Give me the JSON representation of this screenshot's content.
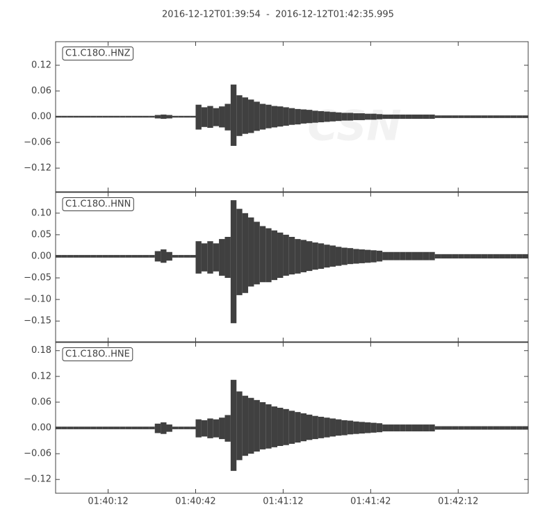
{
  "chart_data": {
    "type": "seismogram",
    "title": "2016-12-12T01:39:54  -  2016-12-12T01:42:35.995",
    "watermark": "CSN",
    "color": "#404040",
    "xlim": [
      0,
      161.995
    ],
    "xticks": [
      {
        "value": 18,
        "label": "01:40:12"
      },
      {
        "value": 48,
        "label": "01:40:42"
      },
      {
        "value": 78,
        "label": "01:41:12"
      },
      {
        "value": 108,
        "label": "01:41:42"
      },
      {
        "value": 138,
        "label": "01:42:12"
      }
    ],
    "x": [
      0,
      2,
      4,
      6,
      8,
      10,
      12,
      14,
      16,
      18,
      20,
      22,
      24,
      26,
      28,
      30,
      32,
      34,
      36,
      38,
      40,
      42,
      44,
      46,
      48,
      50,
      52,
      54,
      56,
      58,
      60,
      62,
      64,
      66,
      68,
      70,
      72,
      74,
      76,
      78,
      80,
      82,
      84,
      86,
      88,
      90,
      92,
      94,
      96,
      98,
      100,
      102,
      104,
      106,
      108,
      110,
      112,
      114,
      116,
      118,
      120,
      122,
      124,
      126,
      128,
      130,
      132,
      134,
      136,
      138,
      140,
      142,
      144,
      146,
      148,
      150,
      152,
      154,
      156,
      158,
      160
    ],
    "panels": [
      {
        "name": "C1.C18O..HNZ",
        "ylim": [
          -0.175,
          0.175
        ],
        "yticks": [
          {
            "value": -0.12,
            "label": "−0.12"
          },
          {
            "value": -0.06,
            "label": "−0.06"
          },
          {
            "value": 0,
            "label": "0.00"
          },
          {
            "value": 0.06,
            "label": "0.06"
          },
          {
            "value": 0.12,
            "label": "0.12"
          }
        ],
        "max": [
          0.002,
          0.002,
          0.002,
          0.002,
          0.002,
          0.002,
          0.002,
          0.002,
          0.002,
          0.002,
          0.002,
          0.002,
          0.002,
          0.002,
          0.002,
          0.002,
          0.002,
          0.004,
          0.005,
          0.004,
          0.002,
          0.002,
          0.002,
          0.002,
          0.028,
          0.022,
          0.025,
          0.02,
          0.024,
          0.03,
          0.075,
          0.05,
          0.045,
          0.04,
          0.035,
          0.03,
          0.028,
          0.025,
          0.024,
          0.022,
          0.02,
          0.018,
          0.017,
          0.016,
          0.014,
          0.013,
          0.012,
          0.011,
          0.01,
          0.009,
          0.009,
          0.008,
          0.008,
          0.007,
          0.007,
          0.006,
          0.005,
          0.005,
          0.005,
          0.005,
          0.005,
          0.005,
          0.005,
          0.005,
          0.005,
          0.003,
          0.003,
          0.003,
          0.003,
          0.003,
          0.003,
          0.003,
          0.003,
          0.003,
          0.003,
          0.003,
          0.003,
          0.003,
          0.003,
          0.003,
          0.003
        ],
        "min": [
          -0.002,
          -0.002,
          -0.002,
          -0.002,
          -0.002,
          -0.002,
          -0.002,
          -0.002,
          -0.002,
          -0.002,
          -0.002,
          -0.002,
          -0.002,
          -0.002,
          -0.002,
          -0.002,
          -0.002,
          -0.004,
          -0.005,
          -0.004,
          -0.002,
          -0.002,
          -0.002,
          -0.002,
          -0.03,
          -0.024,
          -0.026,
          -0.022,
          -0.025,
          -0.032,
          -0.068,
          -0.045,
          -0.04,
          -0.038,
          -0.033,
          -0.03,
          -0.027,
          -0.025,
          -0.023,
          -0.021,
          -0.019,
          -0.018,
          -0.016,
          -0.015,
          -0.014,
          -0.013,
          -0.012,
          -0.011,
          -0.01,
          -0.009,
          -0.009,
          -0.008,
          -0.008,
          -0.007,
          -0.007,
          -0.006,
          -0.005,
          -0.005,
          -0.005,
          -0.005,
          -0.005,
          -0.005,
          -0.005,
          -0.005,
          -0.005,
          -0.003,
          -0.003,
          -0.003,
          -0.003,
          -0.003,
          -0.003,
          -0.003,
          -0.003,
          -0.003,
          -0.003,
          -0.003,
          -0.003,
          -0.003,
          -0.003,
          -0.003,
          -0.003
        ]
      },
      {
        "name": "C1.C18O..HNN",
        "ylim": [
          -0.198,
          0.148
        ],
        "yticks": [
          {
            "value": -0.15,
            "label": "−0.15"
          },
          {
            "value": -0.1,
            "label": "−0.10"
          },
          {
            "value": -0.05,
            "label": "−0.05"
          },
          {
            "value": 0,
            "label": "0.00"
          },
          {
            "value": 0.05,
            "label": "0.05"
          },
          {
            "value": 0.1,
            "label": "0.10"
          }
        ],
        "max": [
          0.003,
          0.003,
          0.003,
          0.003,
          0.003,
          0.003,
          0.003,
          0.003,
          0.003,
          0.003,
          0.003,
          0.003,
          0.003,
          0.003,
          0.003,
          0.003,
          0.003,
          0.012,
          0.016,
          0.01,
          0.003,
          0.003,
          0.003,
          0.003,
          0.035,
          0.03,
          0.035,
          0.03,
          0.04,
          0.045,
          0.13,
          0.11,
          0.1,
          0.09,
          0.08,
          0.07,
          0.065,
          0.06,
          0.055,
          0.05,
          0.045,
          0.04,
          0.038,
          0.035,
          0.032,
          0.03,
          0.027,
          0.025,
          0.022,
          0.02,
          0.019,
          0.017,
          0.016,
          0.015,
          0.014,
          0.013,
          0.01,
          0.01,
          0.01,
          0.01,
          0.01,
          0.01,
          0.01,
          0.01,
          0.01,
          0.005,
          0.005,
          0.005,
          0.005,
          0.005,
          0.005,
          0.005,
          0.005,
          0.005,
          0.005,
          0.005,
          0.005,
          0.005,
          0.005,
          0.005,
          0.005
        ],
        "min": [
          -0.003,
          -0.003,
          -0.003,
          -0.003,
          -0.003,
          -0.003,
          -0.003,
          -0.003,
          -0.003,
          -0.003,
          -0.003,
          -0.003,
          -0.003,
          -0.003,
          -0.003,
          -0.003,
          -0.003,
          -0.012,
          -0.015,
          -0.01,
          -0.003,
          -0.003,
          -0.003,
          -0.003,
          -0.04,
          -0.035,
          -0.04,
          -0.035,
          -0.045,
          -0.05,
          -0.155,
          -0.09,
          -0.085,
          -0.07,
          -0.065,
          -0.06,
          -0.06,
          -0.055,
          -0.05,
          -0.045,
          -0.042,
          -0.04,
          -0.037,
          -0.034,
          -0.031,
          -0.029,
          -0.026,
          -0.024,
          -0.022,
          -0.02,
          -0.018,
          -0.017,
          -0.016,
          -0.015,
          -0.014,
          -0.012,
          -0.009,
          -0.009,
          -0.009,
          -0.009,
          -0.009,
          -0.009,
          -0.009,
          -0.009,
          -0.009,
          -0.005,
          -0.005,
          -0.005,
          -0.005,
          -0.005,
          -0.005,
          -0.005,
          -0.005,
          -0.005,
          -0.005,
          -0.005,
          -0.005,
          -0.005,
          -0.005,
          -0.005,
          -0.005
        ]
      },
      {
        "name": "C1.C18O..HNE",
        "ylim": [
          -0.152,
          0.199
        ],
        "yticks": [
          {
            "value": -0.12,
            "label": "−0.12"
          },
          {
            "value": -0.06,
            "label": "−0.06"
          },
          {
            "value": 0,
            "label": "0.00"
          },
          {
            "value": 0.06,
            "label": "0.06"
          },
          {
            "value": 0.12,
            "label": "0.12"
          },
          {
            "value": 0.18,
            "label": "0.18"
          }
        ],
        "max": [
          0.003,
          0.003,
          0.003,
          0.003,
          0.003,
          0.003,
          0.003,
          0.003,
          0.003,
          0.003,
          0.003,
          0.003,
          0.003,
          0.003,
          0.003,
          0.003,
          0.003,
          0.01,
          0.013,
          0.008,
          0.003,
          0.003,
          0.003,
          0.003,
          0.02,
          0.018,
          0.022,
          0.02,
          0.024,
          0.03,
          0.112,
          0.085,
          0.075,
          0.07,
          0.065,
          0.06,
          0.055,
          0.05,
          0.047,
          0.044,
          0.04,
          0.037,
          0.034,
          0.031,
          0.028,
          0.026,
          0.024,
          0.022,
          0.02,
          0.018,
          0.017,
          0.015,
          0.014,
          0.013,
          0.012,
          0.011,
          0.008,
          0.008,
          0.008,
          0.008,
          0.008,
          0.008,
          0.008,
          0.008,
          0.008,
          0.004,
          0.004,
          0.004,
          0.004,
          0.004,
          0.004,
          0.004,
          0.004,
          0.004,
          0.004,
          0.004,
          0.004,
          0.004,
          0.004,
          0.004,
          0.004
        ],
        "min": [
          -0.003,
          -0.003,
          -0.003,
          -0.003,
          -0.003,
          -0.003,
          -0.003,
          -0.003,
          -0.003,
          -0.003,
          -0.003,
          -0.003,
          -0.003,
          -0.003,
          -0.003,
          -0.003,
          -0.003,
          -0.012,
          -0.014,
          -0.009,
          -0.003,
          -0.003,
          -0.003,
          -0.003,
          -0.022,
          -0.02,
          -0.024,
          -0.022,
          -0.026,
          -0.032,
          -0.1,
          -0.075,
          -0.065,
          -0.06,
          -0.055,
          -0.05,
          -0.048,
          -0.045,
          -0.042,
          -0.04,
          -0.037,
          -0.034,
          -0.031,
          -0.028,
          -0.026,
          -0.024,
          -0.022,
          -0.02,
          -0.018,
          -0.017,
          -0.015,
          -0.014,
          -0.013,
          -0.012,
          -0.011,
          -0.01,
          -0.008,
          -0.008,
          -0.008,
          -0.008,
          -0.008,
          -0.008,
          -0.008,
          -0.008,
          -0.008,
          -0.004,
          -0.004,
          -0.004,
          -0.004,
          -0.004,
          -0.004,
          -0.004,
          -0.004,
          -0.004,
          -0.004,
          -0.004,
          -0.004,
          -0.004,
          -0.004,
          -0.004,
          -0.004
        ]
      }
    ]
  }
}
